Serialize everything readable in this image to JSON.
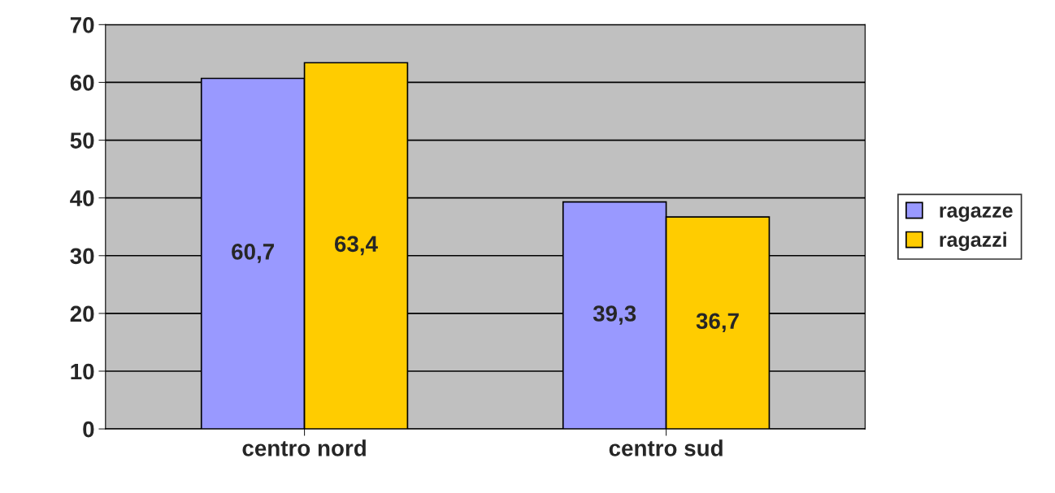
{
  "chart_data": {
    "type": "bar",
    "categories": [
      "centro nord",
      "centro sud"
    ],
    "series": [
      {
        "name": "ragazze",
        "color": "#9999ff",
        "values": [
          60.7,
          39.3
        ],
        "value_labels": [
          "60,7",
          "39,3"
        ]
      },
      {
        "name": "ragazzi",
        "color": "#ffcc00",
        "values": [
          63.4,
          36.7
        ],
        "value_labels": [
          "63,4",
          "36,7"
        ]
      }
    ],
    "ylim": [
      0,
      70
    ],
    "yticks": [
      0,
      10,
      20,
      30,
      40,
      50,
      60,
      70
    ],
    "grid": "y",
    "legend": "right"
  }
}
